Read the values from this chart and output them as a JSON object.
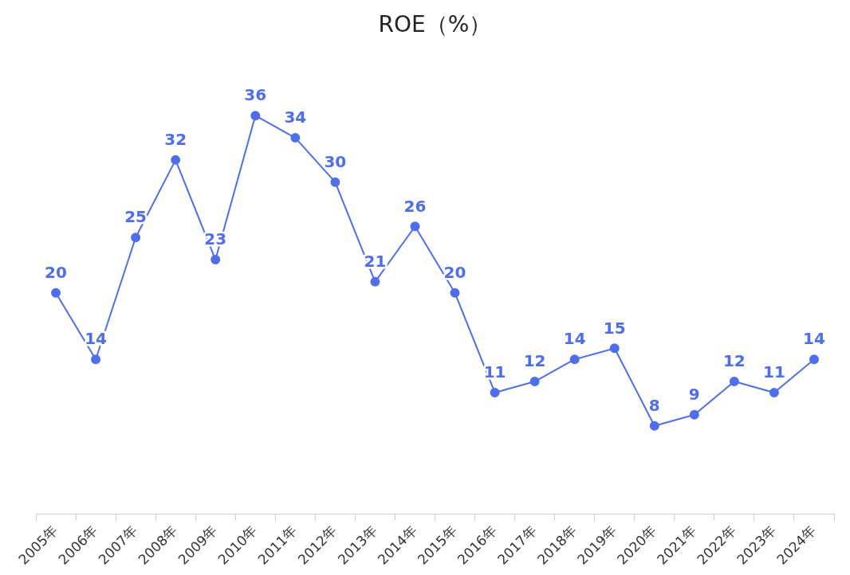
{
  "chart_data": {
    "type": "line",
    "title": "ROE（%）",
    "categories": [
      "2005年",
      "2006年",
      "2007年",
      "2008年",
      "2009年",
      "2010年",
      "2011年",
      "2012年",
      "2013年",
      "2014年",
      "2015年",
      "2016年",
      "2017年",
      "2018年",
      "2019年",
      "2020年",
      "2021年",
      "2022年",
      "2023年",
      "2024年"
    ],
    "series": [
      {
        "color": "#4e6ef2",
        "values": [
          20,
          14,
          25,
          32,
          23,
          36,
          34,
          30,
          21,
          26,
          20,
          11,
          12,
          14,
          15,
          8,
          9,
          12,
          11,
          14
        ]
      }
    ],
    "data_labels": true,
    "marker": "circle",
    "line_style": "solid",
    "grid": false,
    "legend": false,
    "tick_labels": "x"
  }
}
